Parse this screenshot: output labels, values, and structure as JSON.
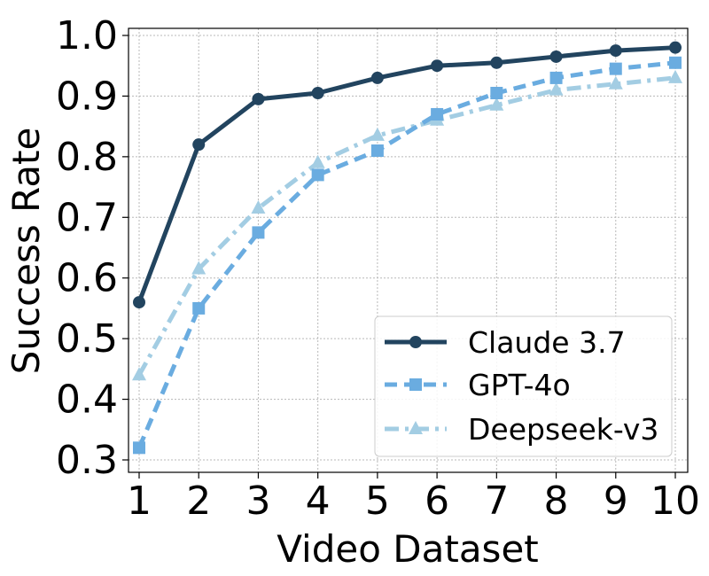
{
  "chart_data": {
    "type": "line",
    "xlabel": "Video Dataset",
    "ylabel": "Success Rate",
    "x": [
      1,
      2,
      3,
      4,
      5,
      6,
      7,
      8,
      9,
      10
    ],
    "x_tick_labels": [
      "1",
      "2",
      "3",
      "4",
      "5",
      "6",
      "7",
      "8",
      "9",
      "10"
    ],
    "ylim": [
      0.3,
      1.0
    ],
    "y_ticks": [
      0.3,
      0.4,
      0.5,
      0.6,
      0.7,
      0.8,
      0.9,
      1.0
    ],
    "y_tick_labels": [
      "0.3",
      "0.4",
      "0.5",
      "0.6",
      "0.7",
      "0.8",
      "0.9",
      "1.0"
    ],
    "grid": true,
    "legend_position": "bottom-right",
    "series": [
      {
        "name": "Claude 3.7",
        "color": "#22445f",
        "line_style": "solid",
        "marker": "circle",
        "values": [
          0.56,
          0.82,
          0.895,
          0.905,
          0.93,
          0.95,
          0.955,
          0.965,
          0.975,
          0.98
        ]
      },
      {
        "name": "GPT-4o",
        "color": "#6aace0",
        "line_style": "dashed",
        "marker": "square",
        "values": [
          0.32,
          0.55,
          0.675,
          0.77,
          0.81,
          0.87,
          0.905,
          0.93,
          0.945,
          0.955
        ]
      },
      {
        "name": "Deepseek-v3",
        "color": "#a3cde3",
        "line_style": "dashdot",
        "marker": "triangle",
        "values": [
          0.44,
          0.615,
          0.715,
          0.79,
          0.835,
          0.86,
          0.885,
          0.91,
          0.92,
          0.93
        ]
      }
    ]
  }
}
